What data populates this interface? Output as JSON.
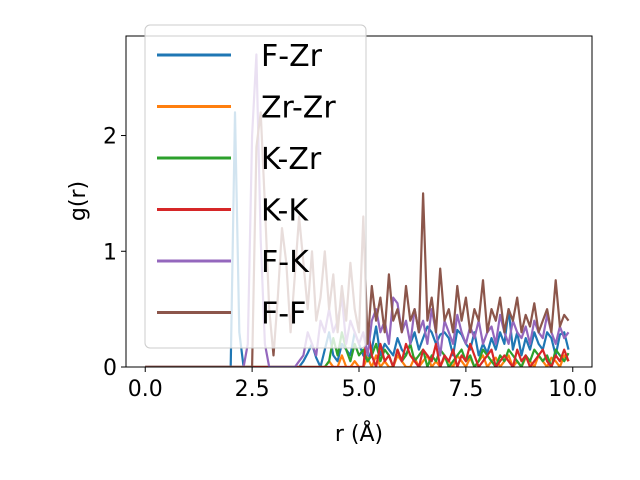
{
  "chart_data": {
    "type": "line",
    "xlabel": "r (Å)",
    "ylabel": "g(r)",
    "xlim": [
      -0.45,
      10.45
    ],
    "ylim": [
      0,
      2.86
    ],
    "xticks": [
      0.0,
      2.5,
      5.0,
      7.5,
      10.0
    ],
    "xtick_labels": [
      "0.0",
      "2.5",
      "5.0",
      "7.5",
      "10.0"
    ],
    "yticks": [
      0,
      1,
      2
    ],
    "ytick_labels": [
      "0",
      "1",
      "2"
    ],
    "grid": false,
    "legend_position": "upper-left",
    "x": [
      0.0,
      0.1,
      0.2,
      0.3,
      0.4,
      0.5,
      0.6,
      0.7,
      0.8,
      0.9,
      1.0,
      1.1,
      1.2,
      1.3,
      1.4,
      1.5,
      1.6,
      1.7,
      1.8,
      1.9,
      2.0,
      2.1,
      2.2,
      2.3,
      2.4,
      2.5,
      2.6,
      2.7,
      2.8,
      2.9,
      3.0,
      3.1,
      3.2,
      3.3,
      3.4,
      3.5,
      3.6,
      3.7,
      3.8,
      3.9,
      4.0,
      4.1,
      4.2,
      4.3,
      4.4,
      4.5,
      4.6,
      4.7,
      4.8,
      4.9,
      5.0,
      5.1,
      5.2,
      5.3,
      5.4,
      5.5,
      5.6,
      5.7,
      5.8,
      5.9,
      6.0,
      6.1,
      6.2,
      6.3,
      6.4,
      6.5,
      6.6,
      6.7,
      6.8,
      6.9,
      7.0,
      7.1,
      7.2,
      7.3,
      7.4,
      7.5,
      7.6,
      7.7,
      7.8,
      7.9,
      8.0,
      8.1,
      8.2,
      8.3,
      8.4,
      8.5,
      8.6,
      8.7,
      8.8,
      8.9,
      9.0,
      9.1,
      9.2,
      9.3,
      9.4,
      9.5,
      9.6,
      9.7,
      9.8,
      9.9
    ],
    "series": [
      {
        "name": "F-Zr",
        "color": "#1f77b4",
        "values": [
          0,
          0,
          0,
          0,
          0,
          0,
          0,
          0,
          0,
          0,
          0,
          0,
          0,
          0,
          0,
          0,
          0,
          0,
          0,
          0,
          0,
          2.2,
          0.3,
          0,
          0,
          0,
          0,
          0,
          0,
          0,
          0,
          0,
          0,
          0,
          0,
          0,
          0,
          0.05,
          0.12,
          0.2,
          0.08,
          0,
          0.15,
          0.3,
          0.1,
          0.05,
          0.2,
          0.15,
          0.1,
          0.3,
          0.2,
          0.1,
          0.05,
          0.15,
          0.35,
          0.1,
          0.2,
          0.15,
          0.1,
          0.25,
          0.15,
          0.1,
          0.2,
          0.3,
          0.15,
          0.25,
          0.35,
          0.3,
          0.2,
          0.28,
          0.3,
          0.25,
          0.1,
          0.32,
          0.28,
          0.2,
          0.15,
          0.3,
          0.1,
          0.2,
          0.12,
          0.25,
          0.15,
          0.3,
          0.2,
          0.5,
          0.15,
          0.3,
          0.1,
          0.25,
          0.15,
          0.3,
          0.2,
          0.15,
          0.3,
          0.25,
          0.1,
          0.28,
          0.3,
          0.15
        ]
      },
      {
        "name": "Zr-Zr",
        "color": "#ff7f0e",
        "values": [
          0,
          0,
          0,
          0,
          0,
          0,
          0,
          0,
          0,
          0,
          0,
          0,
          0,
          0,
          0,
          0,
          0,
          0,
          0,
          0,
          0,
          0,
          0,
          0,
          0,
          0,
          0,
          0,
          0,
          0,
          0,
          0,
          0,
          0,
          0,
          0,
          0,
          0,
          0,
          0,
          0,
          0,
          0,
          0.05,
          0,
          0,
          0.1,
          0,
          0,
          0.05,
          0,
          0,
          0.08,
          0,
          0.1,
          0,
          0.05,
          0,
          0,
          0.1,
          0.05,
          0,
          0,
          0.08,
          0,
          0.05,
          0.1,
          0,
          0.05,
          0,
          0.08,
          0.05,
          0,
          0.1,
          0.05,
          0,
          0.08,
          0,
          0.05,
          0.1,
          0,
          0.05,
          0.08,
          0,
          0.05,
          0.1,
          0,
          0.05,
          0,
          0.08,
          0.05,
          0,
          0.1,
          0.05,
          0,
          0.08,
          0.05,
          0,
          0.1,
          0.05
        ]
      },
      {
        "name": "K-Zr",
        "color": "#2ca02c",
        "values": [
          0,
          0,
          0,
          0,
          0,
          0,
          0,
          0,
          0,
          0,
          0,
          0,
          0,
          0,
          0,
          0,
          0,
          0,
          0,
          0,
          0,
          0,
          0,
          0,
          0,
          0,
          0,
          0,
          0,
          0,
          0,
          0,
          0,
          0,
          0,
          0,
          0,
          0,
          0,
          0,
          0,
          0,
          0,
          0.05,
          0.25,
          0.1,
          0.3,
          0.15,
          0.05,
          0.2,
          0.1,
          0.15,
          0.05,
          0.1,
          0.2,
          0.05,
          0.15,
          0.1,
          0,
          0.15,
          0.05,
          0.1,
          0.2,
          0.05,
          0.1,
          0.15,
          0,
          0.1,
          0.05,
          0.15,
          0.1,
          0,
          0.05,
          0.1,
          0.15,
          0.05,
          0.1,
          0,
          0.05,
          0.15,
          0.1,
          0.05,
          0,
          0.1,
          0.05,
          0.15,
          0.1,
          0.05,
          0,
          0.1,
          0.05,
          0.15,
          0.1,
          0.05,
          0.1,
          0,
          0.15,
          0.1,
          0.05,
          0.12
        ]
      },
      {
        "name": "K-K",
        "color": "#d62728",
        "values": [
          0,
          0,
          0,
          0,
          0,
          0,
          0,
          0,
          0,
          0,
          0,
          0,
          0,
          0,
          0,
          0,
          0,
          0,
          0,
          0,
          0,
          0,
          0,
          0,
          0,
          0,
          0,
          0,
          0,
          0,
          0,
          0,
          0,
          0,
          0,
          0,
          0,
          0,
          0,
          0,
          0,
          0,
          0,
          0,
          0,
          0,
          0,
          0,
          0,
          0,
          0,
          0,
          0.35,
          0.1,
          0,
          0.2,
          0.05,
          0.1,
          0,
          0.15,
          0.05,
          0.2,
          0.1,
          0.05,
          0,
          0.15,
          0.1,
          0.05,
          0.2,
          0,
          0.1,
          0.05,
          0.15,
          0,
          0.1,
          0.05,
          0.2,
          0.1,
          0,
          0.05,
          0.1,
          0.15,
          0,
          0.05,
          0.1,
          0.05,
          0,
          0.15,
          0.05,
          0.1,
          0,
          0.05,
          0.1,
          0.15,
          0.05,
          0,
          0.1,
          0.05,
          0.15,
          0.05
        ]
      },
      {
        "name": "F-K",
        "color": "#9467bd",
        "values": [
          0,
          0,
          0,
          0,
          0,
          0,
          0,
          0,
          0,
          0,
          0,
          0,
          0,
          0,
          0,
          0,
          0,
          0,
          0,
          0,
          0,
          0,
          0,
          0,
          0.2,
          2.0,
          2.7,
          1.1,
          0.2,
          0,
          0,
          0,
          0,
          0,
          0,
          0,
          0.05,
          0.1,
          0.3,
          0.2,
          0.1,
          0.4,
          0.3,
          0.5,
          0.3,
          0.4,
          0.6,
          0.2,
          0.4,
          0.3,
          0.2,
          0.3,
          0.1,
          0.4,
          0.5,
          0.3,
          0.4,
          0.2,
          0.6,
          0.55,
          0.3,
          0.4,
          0.2,
          0.5,
          0.3,
          0.4,
          0.2,
          0.5,
          0.3,
          0.1,
          0.4,
          0.3,
          0.2,
          0.45,
          0.3,
          0.2,
          0.35,
          0.25,
          0.4,
          0.2,
          0.3,
          0.35,
          0.2,
          0.45,
          0.3,
          0.2,
          0.4,
          0.3,
          0.25,
          0.35,
          0.2,
          0.4,
          0.3,
          0.25,
          0.45,
          0.3,
          0.2,
          0.35,
          0.25,
          0.3
        ]
      },
      {
        "name": "F-F",
        "color": "#8c564b",
        "values": [
          0,
          0,
          0,
          0,
          0,
          0,
          0,
          0,
          0,
          0,
          0,
          0,
          0,
          0,
          0,
          0,
          0,
          0,
          0,
          0,
          0,
          0,
          0,
          0,
          0,
          0,
          1.9,
          2.2,
          1.4,
          0.5,
          0.1,
          0.6,
          1.2,
          0.9,
          0.3,
          0.8,
          1.3,
          0.9,
          0.5,
          1.0,
          0.4,
          0.6,
          1.0,
          0.5,
          0.8,
          0.3,
          0.7,
          0.4,
          0.9,
          0.5,
          0.3,
          1.3,
          0.2,
          0.7,
          0.4,
          0.6,
          0.3,
          0.8,
          0.4,
          0.5,
          0.3,
          0.7,
          0.4,
          0.5,
          0.3,
          1.5,
          0.4,
          0.6,
          0.3,
          0.85,
          0.4,
          0.5,
          0.3,
          0.7,
          0.4,
          0.6,
          0.3,
          0.5,
          0.4,
          0.75,
          0.3,
          0.5,
          0.4,
          0.6,
          0.3,
          0.5,
          0.4,
          0.6,
          0.3,
          0.45,
          0.35,
          0.55,
          0.3,
          0.4,
          0.5,
          0.3,
          0.75,
          0.35,
          0.45,
          0.4
        ]
      }
    ]
  }
}
